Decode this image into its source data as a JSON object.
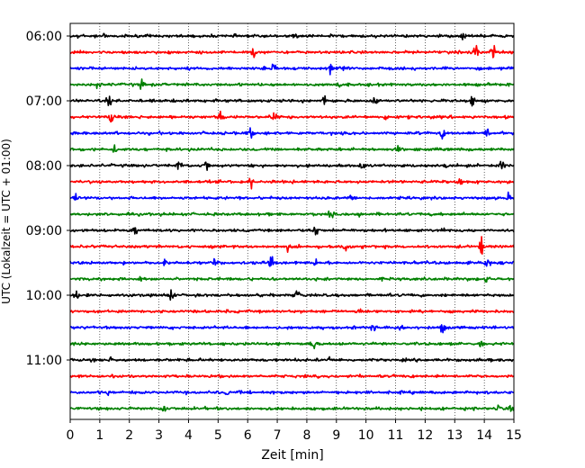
{
  "chart_data": {
    "type": "line",
    "title": "",
    "xlabel": "Zeit  [min]",
    "ylabel": "UTC (Lokalzeit = UTC + 01:00)",
    "xlim": [
      0,
      15
    ],
    "x_ticks": [
      "0",
      "1",
      "2",
      "3",
      "4",
      "5",
      "6",
      "7",
      "8",
      "9",
      "10",
      "11",
      "12",
      "13",
      "14",
      "15"
    ],
    "y_ticks": [
      "06:00",
      "07:00",
      "08:00",
      "09:00",
      "10:00",
      "11:00"
    ],
    "y_tick_traces": [
      0,
      4,
      8,
      12,
      16,
      20
    ],
    "grid": "vertical dotted at each minute",
    "trace_minutes": 15,
    "trace_colors": [
      "#000000",
      "#ff0000",
      "#0000ff",
      "#008000"
    ],
    "series": [
      {
        "start": "06:00",
        "color": "#000000",
        "events": [
          [
            0.3,
            0.5
          ],
          [
            1.2,
            0.5
          ],
          [
            7.6,
            0.4
          ],
          [
            13.3,
            0.4
          ]
        ]
      },
      {
        "start": "06:15",
        "color": "#ff0000",
        "events": [
          [
            6.2,
            0.8
          ],
          [
            13.7,
            1.0
          ],
          [
            14.3,
            1.0
          ]
        ]
      },
      {
        "start": "06:30",
        "color": "#0000ff",
        "events": [
          [
            6.9,
            1.0
          ],
          [
            8.8,
            0.9
          ],
          [
            9.2,
            1.0
          ]
        ]
      },
      {
        "start": "06:45",
        "color": "#008000",
        "events": [
          [
            0.9,
            0.4
          ],
          [
            2.4,
            0.7
          ],
          [
            9.1,
            0.4
          ]
        ]
      },
      {
        "start": "07:00",
        "color": "#000000",
        "events": [
          [
            1.3,
            0.8
          ],
          [
            3.9,
            0.5
          ],
          [
            8.6,
            1.1
          ],
          [
            10.3,
            0.7
          ],
          [
            13.6,
            0.9
          ]
        ]
      },
      {
        "start": "07:15",
        "color": "#ff0000",
        "events": [
          [
            1.4,
            1.1
          ],
          [
            5.1,
            0.8
          ],
          [
            6.9,
            1.0
          ],
          [
            10.7,
            0.5
          ]
        ]
      },
      {
        "start": "07:30",
        "color": "#0000ff",
        "events": [
          [
            6.1,
            0.7
          ],
          [
            12.6,
            0.7
          ],
          [
            14.1,
            1.0
          ]
        ]
      },
      {
        "start": "07:45",
        "color": "#008000",
        "events": [
          [
            1.5,
            0.5
          ],
          [
            4.2,
            0.4
          ],
          [
            11.1,
            0.4
          ]
        ]
      },
      {
        "start": "08:00",
        "color": "#000000",
        "events": [
          [
            3.7,
            1.0
          ],
          [
            4.6,
            0.9
          ],
          [
            9.9,
            0.5
          ],
          [
            12.7,
            0.9
          ],
          [
            14.6,
            0.7
          ]
        ]
      },
      {
        "start": "08:15",
        "color": "#ff0000",
        "events": [
          [
            6.1,
            0.9
          ],
          [
            13.2,
            0.5
          ]
        ]
      },
      {
        "start": "08:30",
        "color": "#0000ff",
        "events": [
          [
            0.2,
            0.6
          ],
          [
            9.5,
            0.4
          ],
          [
            14.8,
            0.4
          ]
        ]
      },
      {
        "start": "08:45",
        "color": "#008000",
        "events": [
          [
            8.8,
            0.6
          ],
          [
            9.8,
            0.4
          ]
        ]
      },
      {
        "start": "09:00",
        "color": "#000000",
        "events": [
          [
            2.2,
            1.1
          ],
          [
            8.3,
            1.1
          ],
          [
            12.6,
            0.6
          ]
        ]
      },
      {
        "start": "09:15",
        "color": "#ff0000",
        "events": [
          [
            7.4,
            0.6
          ],
          [
            9.3,
            0.7
          ],
          [
            13.9,
            1.2
          ]
        ]
      },
      {
        "start": "09:30",
        "color": "#0000ff",
        "events": [
          [
            3.2,
            0.7
          ],
          [
            4.9,
            0.5
          ],
          [
            6.8,
            0.9
          ],
          [
            8.3,
            0.5
          ],
          [
            14.1,
            1.2
          ]
        ]
      },
      {
        "start": "09:45",
        "color": "#008000",
        "events": [
          [
            2.4,
            0.4
          ],
          [
            14.1,
            0.5
          ]
        ]
      },
      {
        "start": "10:00",
        "color": "#000000",
        "events": [
          [
            0.2,
            1.0
          ],
          [
            3.4,
            1.0
          ],
          [
            7.7,
            0.9
          ],
          [
            6.4,
            0.4
          ]
        ]
      },
      {
        "start": "10:15",
        "color": "#ff0000",
        "events": [
          [
            9.8,
            0.3
          ]
        ]
      },
      {
        "start": "10:30",
        "color": "#0000ff",
        "events": [
          [
            10.2,
            0.7
          ],
          [
            12.6,
            1.0
          ],
          [
            11.2,
            0.5
          ]
        ]
      },
      {
        "start": "10:45",
        "color": "#008000",
        "events": [
          [
            8.2,
            1.3
          ],
          [
            13.9,
            0.6
          ]
        ]
      },
      {
        "start": "11:00",
        "color": "#000000",
        "events": [
          [
            1.4,
            0.5
          ],
          [
            8.8,
            0.5
          ]
        ]
      },
      {
        "start": "11:15",
        "color": "#ff0000",
        "events": []
      },
      {
        "start": "11:30",
        "color": "#0000ff",
        "events": [
          [
            1.3,
            0.4
          ],
          [
            5.3,
            0.4
          ]
        ]
      },
      {
        "start": "11:45",
        "color": "#008000",
        "events": [
          [
            3.2,
            0.9
          ],
          [
            14.5,
            0.6
          ],
          [
            14.9,
            0.5
          ]
        ]
      }
    ]
  }
}
